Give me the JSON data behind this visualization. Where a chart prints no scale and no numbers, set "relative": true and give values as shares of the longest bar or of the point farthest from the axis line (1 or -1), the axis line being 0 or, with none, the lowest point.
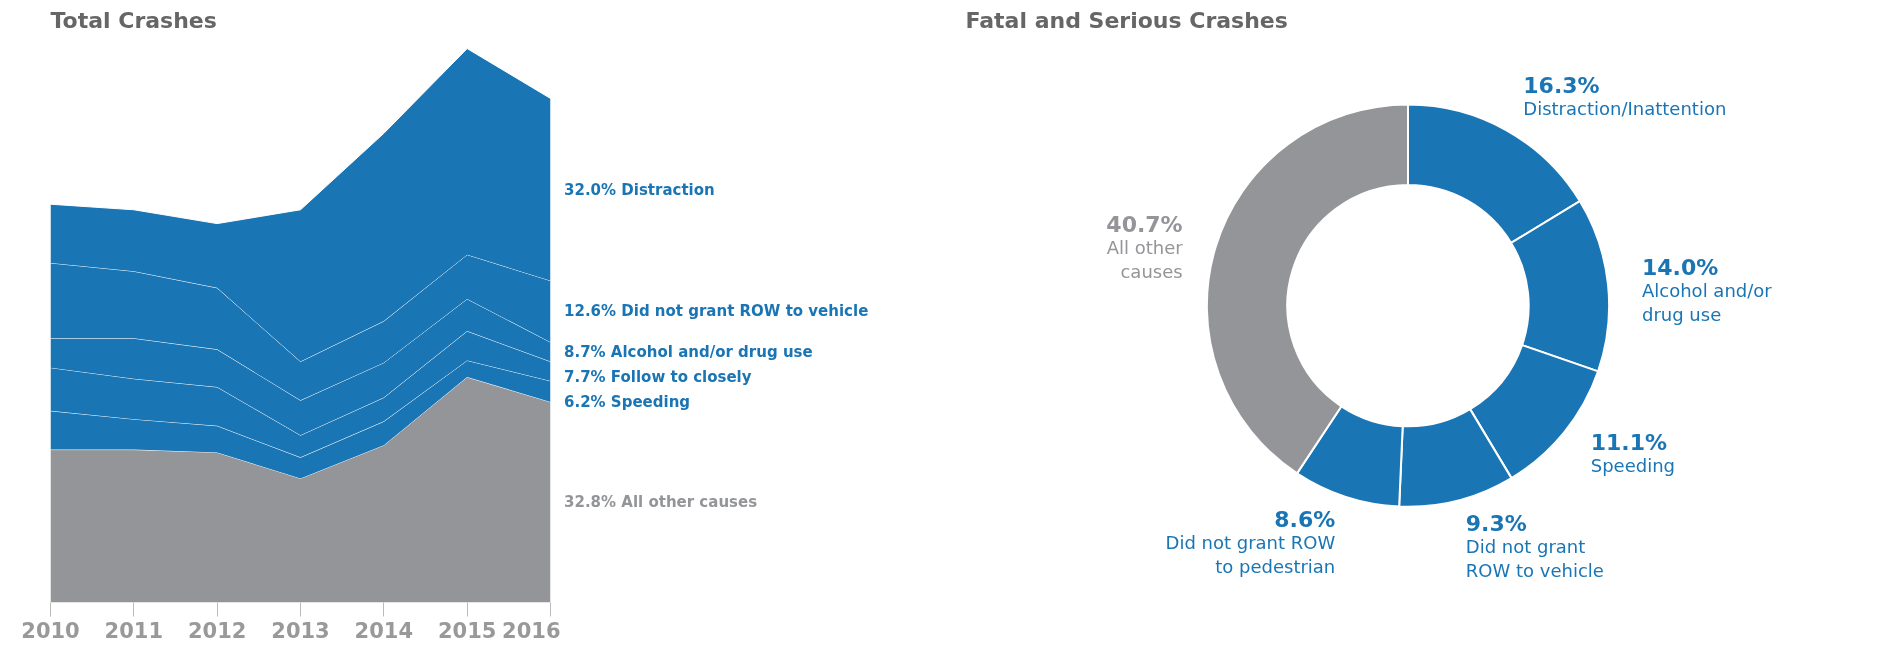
{
  "chart_data": [
    {
      "type": "area",
      "title": "Total Crashes",
      "stacked": true,
      "relative": true,
      "grid": false,
      "x": [
        2010,
        2011,
        2012,
        2013,
        2014,
        2015,
        2016
      ],
      "xlim": [
        2010,
        2016
      ],
      "xticks": [
        2010,
        2011,
        2012,
        2013,
        2014,
        2015,
        2016
      ],
      "series": [
        {
          "name": "32.8% All other causes",
          "color": "#939598",
          "values": [
            0.276,
            0.276,
            0.271,
            0.224,
            0.284,
            0.407,
            0.362
          ]
        },
        {
          "name": "6.2% Speeding",
          "color": "#1a75b5",
          "values": [
            0.07,
            0.055,
            0.048,
            0.038,
            0.043,
            0.03,
            0.038
          ]
        },
        {
          "name": "7.7% Follow to closely",
          "color": "#1a75b5",
          "values": [
            0.078,
            0.073,
            0.07,
            0.04,
            0.043,
            0.053,
            0.035
          ]
        },
        {
          "name": "8.7% Alcohol and/or drug use",
          "color": "#1a75b5",
          "values": [
            0.053,
            0.073,
            0.068,
            0.063,
            0.063,
            0.058,
            0.035
          ]
        },
        {
          "name": "12.6% Did not grant ROW to vehicle",
          "color": "#1a75b5",
          "values": [
            0.136,
            0.121,
            0.111,
            0.07,
            0.075,
            0.08,
            0.111
          ]
        },
        {
          "name": "32.0% Distraction",
          "color": "#1a75b5",
          "values": [
            0.106,
            0.111,
            0.116,
            0.274,
            0.339,
            0.372,
            0.329
          ]
        }
      ]
    },
    {
      "type": "donut",
      "title": "Fatal and Serious Crashes",
      "value_labels": [
        "16.3%",
        "14.0%",
        "11.1%",
        "9.3%",
        "8.6%",
        "40.7%"
      ],
      "categories": [
        "Distraction/Inattention",
        "Alcohol and/or\ndrug use",
        "Speeding",
        "Did not grant\nROW to vehicle",
        "Did not grant ROW\nto pedestrian",
        "All other\ncauses"
      ],
      "values": [
        16.3,
        14.0,
        11.1,
        9.3,
        8.6,
        40.7
      ],
      "colors": [
        "#1a75b5",
        "#1a75b5",
        "#1a75b5",
        "#1a75b5",
        "#1a75b5",
        "#939598"
      ]
    }
  ]
}
